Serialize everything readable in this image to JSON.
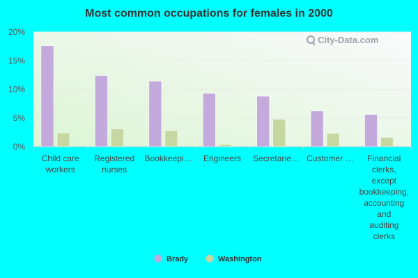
{
  "chart_data": {
    "type": "bar",
    "title": "Most common occupations for females in 2000",
    "categories": [
      "Child care workers",
      "Registered nurses",
      "Bookkeepi…",
      "Engineers",
      "Secretarie…",
      "Customer …",
      "Financial clerks, except bookkeeping, accounting and auditing clerks"
    ],
    "category_lines": [
      [
        "Child care",
        "workers"
      ],
      [
        "Registered",
        "nurses"
      ],
      [
        "Bookkeepi…"
      ],
      [
        "Engineers"
      ],
      [
        "Secretarie…"
      ],
      [
        "Customer …"
      ],
      [
        "Financial",
        "clerks,",
        "except",
        "bookkeeping,",
        "accounting",
        "and",
        "auditing",
        "clerks"
      ]
    ],
    "series": [
      {
        "name": "Brady",
        "color": "#c3a9dc",
        "values": [
          17.6,
          12.4,
          11.4,
          9.3,
          8.8,
          6.2,
          5.6
        ]
      },
      {
        "name": "Washington",
        "color": "#c6d7a2",
        "values": [
          2.4,
          3.1,
          2.8,
          0.4,
          4.8,
          2.3,
          1.6
        ]
      }
    ],
    "ylim": [
      0,
      20
    ],
    "yticks": [
      0,
      5,
      10,
      15,
      20
    ],
    "ytick_labels": [
      "0%",
      "5%",
      "10%",
      "15%",
      "20%"
    ],
    "xlabel": "",
    "ylabel": "",
    "legend_position": "bottom-center",
    "grid": true
  },
  "watermark": "City-Data.com"
}
